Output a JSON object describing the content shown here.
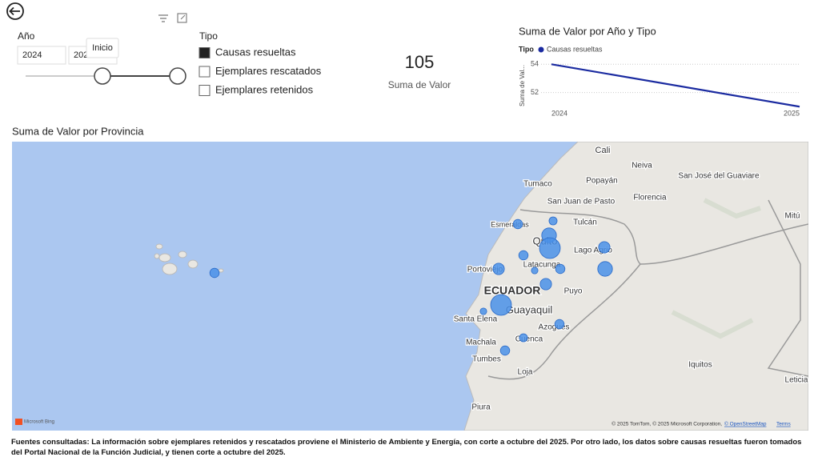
{
  "year_slicer": {
    "title": "Año",
    "start": "2024",
    "end": "202",
    "tooltip": "Inicio"
  },
  "type_slicer": {
    "title": "Tipo",
    "options": [
      {
        "label": "Causas resueltas",
        "selected": true
      },
      {
        "label": "Ejemplares rescatados",
        "selected": false
      },
      {
        "label": "Ejemplares retenidos",
        "selected": false
      }
    ]
  },
  "card": {
    "value": 105,
    "label": "Suma de Valor"
  },
  "chart_data": {
    "type": "line",
    "title": "Suma de Valor por Año y Tipo",
    "legend_title": "Tipo",
    "ylabel": "Suma de Val...",
    "x": [
      2024,
      2025
    ],
    "series": [
      {
        "name": "Causas resueltas",
        "color": "#1a2aa0",
        "values": [
          54,
          51
        ]
      }
    ],
    "ylim": [
      50.9,
      54.3
    ],
    "yticks": [
      52,
      54
    ],
    "grid": true
  },
  "map": {
    "title": "Suma de Valor por Provincia",
    "bubble_color": "#4a90e8",
    "bubbles": [
      4,
      3,
      10,
      20,
      4,
      6,
      2,
      4,
      6,
      10,
      6,
      20,
      2,
      4,
      3,
      4,
      4
    ],
    "labels": [
      "Cali",
      "Neiva",
      "San José del Guaviare",
      "Popayán",
      "Tumaco",
      "San Juan de Pasto",
      "Florencia",
      "Mitú",
      "Esmeraldas",
      "Tulcán",
      "Quito",
      "Lago Agrio",
      "Portoviejo",
      "Latacunga",
      "ECUADOR",
      "Puyo",
      "Guayaquil",
      "Santa Elena",
      "Azogues",
      "Machala",
      "Cuenca",
      "Tumbes",
      "Iquitos",
      "Loja",
      "Leticia",
      "Piura"
    ],
    "provider": "Microsoft Bing",
    "attribution": "© 2025 TomTom, © 2025 Microsoft Corporation,",
    "osm": "© OpenStreetMap",
    "terms": "Terms"
  },
  "footer": "Fuentes consultadas: La información sobre ejemplares retenidos y rescatados proviene el Ministerio de Ambiente y Energía, con corte a octubre del 2025. Por otro lado, los datos sobre causas resueltas fueron tomados del Portal Nacional de la Función Judicial, y tienen corte a octubre del 2025."
}
